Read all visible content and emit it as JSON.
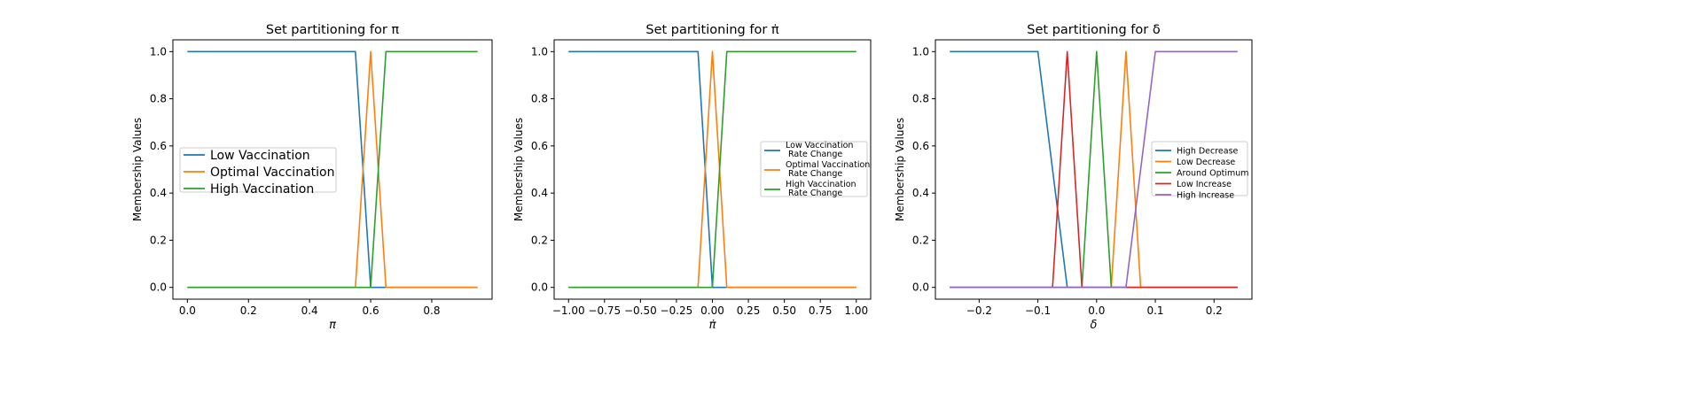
{
  "chart_data": [
    {
      "type": "line",
      "title": "Set partitioning for π",
      "xlabel": "π",
      "ylabel": "Membership Values",
      "xlim": [
        -0.0475,
        0.9975
      ],
      "ylim": [
        -0.05,
        1.05
      ],
      "xticks": [
        0.0,
        0.2,
        0.4,
        0.6,
        0.8
      ],
      "xtick_labels": [
        "0.0",
        "0.2",
        "0.4",
        "0.6",
        "0.8"
      ],
      "yticks": [
        0.0,
        0.2,
        0.4,
        0.6,
        0.8,
        1.0
      ],
      "ytick_labels": [
        "0.0",
        "0.2",
        "0.4",
        "0.6",
        "0.8",
        "1.0"
      ],
      "grid": false,
      "legend": {
        "placement": "center-left",
        "font_size": "large"
      },
      "series": [
        {
          "name": "Low Vaccination",
          "color": "#1f77b4",
          "x": [
            0.0,
            0.55,
            0.6,
            0.95
          ],
          "y": [
            1,
            1,
            0,
            0
          ]
        },
        {
          "name": "Optimal Vaccination",
          "color": "#ff7f0e",
          "x": [
            0.0,
            0.55,
            0.6,
            0.65,
            0.95
          ],
          "y": [
            0,
            0,
            1,
            0,
            0
          ]
        },
        {
          "name": "High Vaccination",
          "color": "#2ca02c",
          "x": [
            0.0,
            0.6,
            0.65,
            0.95
          ],
          "y": [
            0,
            0,
            1,
            1
          ]
        }
      ]
    },
    {
      "type": "line",
      "title": "Set partitioning for π̇",
      "xlabel": "π̇",
      "ylabel": "Membership Values",
      "xlim": [
        -1.1,
        1.1
      ],
      "ylim": [
        -0.05,
        1.05
      ],
      "xticks": [
        -1.0,
        -0.75,
        -0.5,
        -0.25,
        0.0,
        0.25,
        0.5,
        0.75,
        1.0
      ],
      "xtick_labels": [
        "−1.00",
        "−0.75",
        "−0.50",
        "−0.25",
        "0.00",
        "0.25",
        "0.50",
        "0.75",
        "1.00"
      ],
      "yticks": [
        0.0,
        0.2,
        0.4,
        0.6,
        0.8,
        1.0
      ],
      "ytick_labels": [
        "0.0",
        "0.2",
        "0.4",
        "0.6",
        "0.8",
        "1.0"
      ],
      "grid": false,
      "legend": {
        "placement": "center-right",
        "font_size": "small"
      },
      "series": [
        {
          "name": "Low Vaccination\n Rate Change",
          "color": "#1f77b4",
          "x": [
            -1.0,
            -0.1,
            0.0,
            1.0
          ],
          "y": [
            1,
            1,
            0,
            0
          ]
        },
        {
          "name": "Optimal Vaccination\n Rate Change",
          "color": "#ff7f0e",
          "x": [
            -1.0,
            -0.1,
            0.0,
            0.1,
            1.0
          ],
          "y": [
            0,
            0,
            1,
            0,
            0
          ]
        },
        {
          "name": "High Vaccination\n Rate Change",
          "color": "#2ca02c",
          "x": [
            -1.0,
            0.0,
            0.1,
            1.0
          ],
          "y": [
            0,
            0,
            1,
            1
          ]
        }
      ]
    },
    {
      "type": "line",
      "title": "Set partitioning for δ",
      "xlabel": "δ",
      "ylabel": "Membership Values",
      "xlim": [
        -0.2745,
        0.2645
      ],
      "ylim": [
        -0.05,
        1.05
      ],
      "xticks": [
        -0.2,
        -0.1,
        0.0,
        0.1,
        0.2
      ],
      "xtick_labels": [
        "−0.2",
        "−0.1",
        "0.0",
        "0.1",
        "0.2"
      ],
      "yticks": [
        0.0,
        0.2,
        0.4,
        0.6,
        0.8,
        1.0
      ],
      "ytick_labels": [
        "0.0",
        "0.2",
        "0.4",
        "0.6",
        "0.8",
        "1.0"
      ],
      "grid": false,
      "legend": {
        "placement": "center-right",
        "font_size": "small"
      },
      "series": [
        {
          "name": "High Decrease",
          "color": "#1f77b4",
          "x": [
            -0.25,
            -0.1,
            -0.05,
            0.24
          ],
          "y": [
            1,
            1,
            0,
            0
          ]
        },
        {
          "name": "Low Decrease",
          "color": "#ff7f0e",
          "x": [
            -0.25,
            0.025,
            0.05,
            0.075,
            0.24
          ],
          "y": [
            0,
            0,
            1,
            0,
            0
          ]
        },
        {
          "name": "Around Optimum",
          "color": "#2ca02c",
          "x": [
            -0.25,
            -0.025,
            0.0,
            0.025,
            0.24
          ],
          "y": [
            0,
            0,
            1,
            0,
            0
          ]
        },
        {
          "name": "Low Increase",
          "color": "#d62728",
          "x": [
            -0.25,
            -0.075,
            -0.05,
            -0.025,
            0.24
          ],
          "y": [
            0,
            0,
            1,
            0,
            0
          ]
        },
        {
          "name": "High Increase",
          "color": "#9467bd",
          "x": [
            -0.25,
            0.05,
            0.1,
            0.24
          ],
          "y": [
            0,
            0,
            1,
            1
          ]
        }
      ]
    }
  ]
}
